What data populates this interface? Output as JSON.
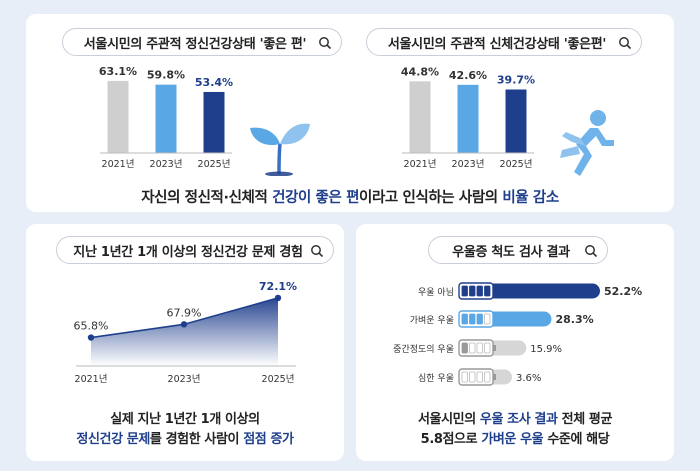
{
  "top_banner": {
    "parts": [
      {
        "text": "자신의 정신적·신체적 ",
        "hl": false
      },
      {
        "text": "건강이 좋은 편",
        "hl": true
      },
      {
        "text": "이라고 인식하는 사람의 ",
        "hl": false
      },
      {
        "text": "비율 감소",
        "hl": true
      }
    ]
  },
  "bottom_left_caption": {
    "line1": "실제 지난 1년간 1개 이상의",
    "line2_parts": [
      {
        "text": "정신건강 문제",
        "hl": true
      },
      {
        "text": "를 경험한 사람이 ",
        "hl": false
      },
      {
        "text": "점점 증가",
        "hl": true
      }
    ]
  },
  "bottom_right_caption": {
    "line1_parts": [
      {
        "text": "서울시민의 ",
        "hl": false
      },
      {
        "text": "우울 조사 결과",
        "hl": true
      },
      {
        "text": " 전체 평균",
        "hl": false
      }
    ],
    "line2_parts": [
      {
        "text": "5.8점으로 ",
        "hl": false
      },
      {
        "text": "가벼운 우울",
        "hl": true
      },
      {
        "text": " 수준에 해당",
        "hl": false
      }
    ]
  },
  "colors": {
    "gray": "#cfcfcf",
    "light_blue": "#5aa7e6",
    "navy": "#1f3f8c",
    "highlight": "#1f3f8c"
  },
  "chart_data": [
    {
      "type": "bar",
      "title": "서울시민의 주관적 정신건강상태 '좋은 편'",
      "categories": [
        "2021년",
        "2023년",
        "2025년"
      ],
      "values": [
        63.1,
        59.8,
        53.4
      ],
      "value_labels": [
        "63.1%",
        "59.8%",
        "53.4%"
      ],
      "unit": "%",
      "ylim": [
        0,
        70
      ],
      "bar_colors": [
        "#cfcfcf",
        "#5aa7e6",
        "#1f3f8c"
      ],
      "icon": "sprout-icon"
    },
    {
      "type": "bar",
      "title": "서울시민의 주관적 신체건강상태 '좋은편'",
      "categories": [
        "2021년",
        "2023년",
        "2025년"
      ],
      "values": [
        44.8,
        42.6,
        39.7
      ],
      "value_labels": [
        "44.8%",
        "42.6%",
        "39.7%"
      ],
      "unit": "%",
      "ylim": [
        0,
        50
      ],
      "bar_colors": [
        "#cfcfcf",
        "#5aa7e6",
        "#1f3f8c"
      ],
      "icon": "running-person-icon"
    },
    {
      "type": "area",
      "title": "지난 1년간 1개 이상의 정신건강 문제 경험",
      "x": [
        "2021년",
        "2023년",
        "2025년"
      ],
      "values": [
        65.8,
        67.9,
        72.1
      ],
      "value_labels": [
        "65.8%",
        "67.9%",
        "72.1%"
      ],
      "unit": "%",
      "ylim": [
        60,
        74
      ]
    },
    {
      "type": "bar",
      "orientation": "horizontal",
      "title": "우울증 척도 검사 결과",
      "categories": [
        "우울 아님",
        "가벼운 우울",
        "중간정도의 우울",
        "심한 우울"
      ],
      "values": [
        52.2,
        28.3,
        15.9,
        3.6
      ],
      "value_labels": [
        "52.2%",
        "28.3%",
        "15.9%",
        "3.6%"
      ],
      "unit": "%",
      "xlim": [
        0,
        60
      ],
      "battery_levels": [
        4,
        3,
        1,
        0
      ],
      "bar_colors": [
        "#1f3f8c",
        "#5aa7e6",
        "#d6d6d6",
        "#d6d6d6"
      ]
    }
  ]
}
